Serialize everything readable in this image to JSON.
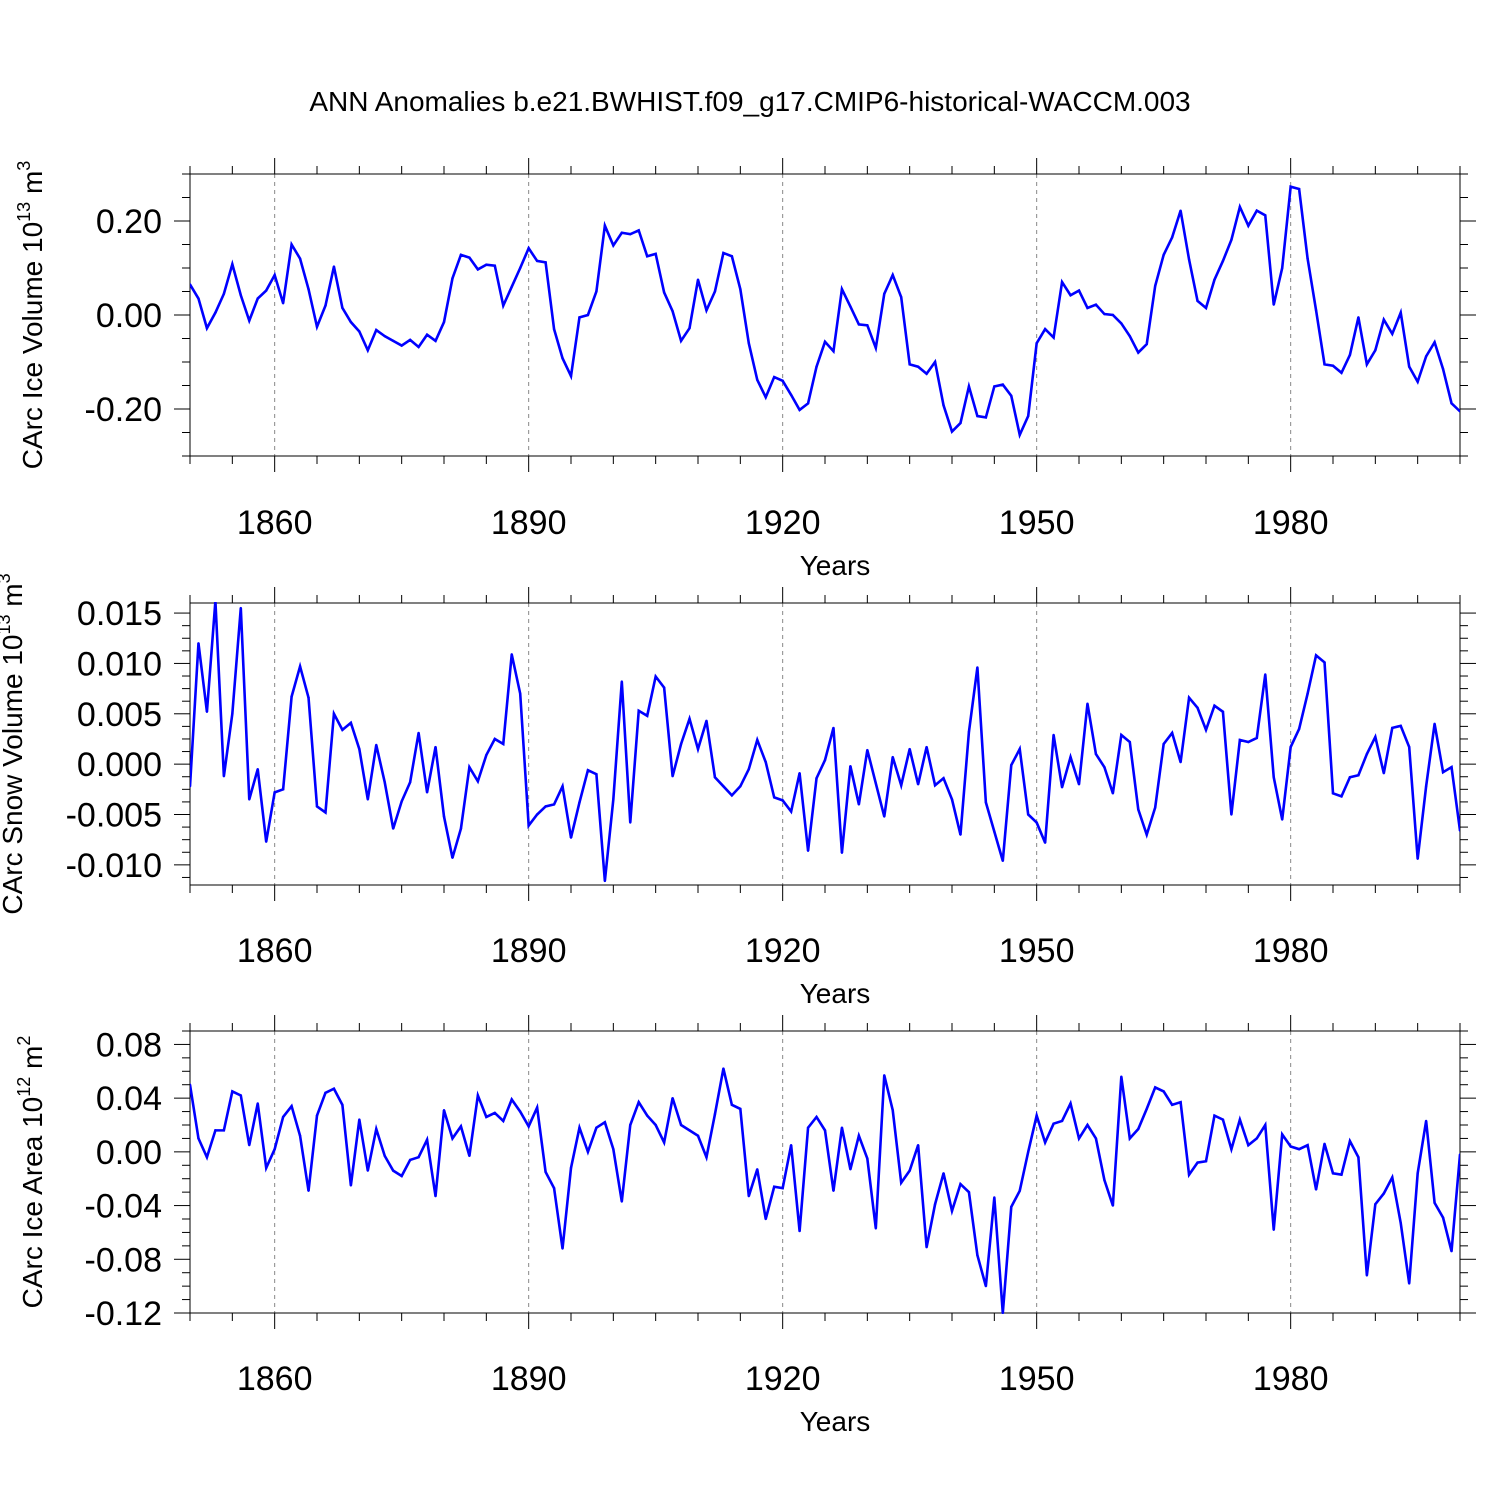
{
  "title": "ANN Anomalies b.e21.BWHIST.f09_g17.CMIP6-historical-WACCM.003",
  "colors": {
    "series": "#0000ff",
    "axis": "#000000",
    "grid": "#888888"
  },
  "chart_data": [
    {
      "type": "line",
      "ylabel": {
        "main": "CArc Ice Volume 10",
        "exp": "13",
        "unit": " m",
        "unit_exp": "3"
      },
      "xlabel": "Years",
      "xlim": [
        1850,
        2000
      ],
      "ylim": [
        -0.3,
        0.3
      ],
      "x_ticks": [
        "1860",
        "1890",
        "1920",
        "1950",
        "1980"
      ],
      "y_ticks": [
        {
          "value": 0.2,
          "label": "0.20"
        },
        {
          "value": 0.0,
          "label": "0.00"
        },
        {
          "value": -0.2,
          "label": "-0.20"
        }
      ],
      "grid": "vertical dashed at major x ticks",
      "series": [
        {
          "x_start": 1850,
          "values": [
            0.065,
            0.035,
            -0.028,
            0.005,
            0.045,
            0.108,
            0.042,
            -0.012,
            0.035,
            0.052,
            0.085,
            0.025,
            0.15,
            0.12,
            0.055,
            -0.025,
            0.02,
            0.103,
            0.015,
            -0.015,
            -0.035,
            -0.075,
            -0.032,
            -0.045,
            -0.055,
            -0.065,
            -0.053,
            -0.068,
            -0.042,
            -0.055,
            -0.015,
            0.078,
            0.128,
            0.122,
            0.097,
            0.107,
            0.105,
            0.02,
            0.06,
            0.1,
            0.142,
            0.115,
            0.112,
            -0.03,
            -0.092,
            -0.13,
            -0.005,
            0.0,
            0.05,
            0.19,
            0.148,
            0.175,
            0.172,
            0.18,
            0.125,
            0.13,
            0.048,
            0.008,
            -0.055,
            -0.028,
            0.075,
            0.01,
            0.05,
            0.132,
            0.125,
            0.055,
            -0.06,
            -0.138,
            -0.175,
            -0.132,
            -0.14,
            -0.17,
            -0.202,
            -0.188,
            -0.11,
            -0.057,
            -0.077,
            0.055,
            0.018,
            -0.02,
            -0.022,
            -0.07,
            0.045,
            0.085,
            0.038,
            -0.105,
            -0.11,
            -0.125,
            -0.1,
            -0.192,
            -0.248,
            -0.23,
            -0.152,
            -0.215,
            -0.218,
            -0.152,
            -0.148,
            -0.172,
            -0.255,
            -0.215,
            -0.06,
            -0.03,
            -0.048,
            0.07,
            0.042,
            0.052,
            0.015,
            0.022,
            0.002,
            0.0,
            -0.018,
            -0.045,
            -0.08,
            -0.062,
            0.062,
            0.128,
            0.165,
            0.222,
            0.118,
            0.03,
            0.015,
            0.075,
            0.115,
            0.16,
            0.23,
            0.19,
            0.222,
            0.212,
            0.022,
            0.1,
            0.273,
            0.268,
            0.12,
            0.01,
            -0.105,
            -0.108,
            -0.123,
            -0.085,
            -0.005,
            -0.105,
            -0.075,
            -0.01,
            -0.04,
            0.005,
            -0.11,
            -0.142,
            -0.088,
            -0.058,
            -0.115,
            -0.188,
            -0.205
          ]
        }
      ]
    },
    {
      "type": "line",
      "ylabel": {
        "main": "CArc Snow Volume 10",
        "exp": "13",
        "unit": " m",
        "unit_exp": "3"
      },
      "xlabel": "Years",
      "xlim": [
        1850,
        2000
      ],
      "ylim": [
        -0.012,
        0.016
      ],
      "x_ticks": [
        "1860",
        "1890",
        "1920",
        "1950",
        "1980"
      ],
      "y_ticks": [
        {
          "value": 0.015,
          "label": "0.015"
        },
        {
          "value": 0.01,
          "label": "0.010"
        },
        {
          "value": 0.005,
          "label": "0.005"
        },
        {
          "value": 0.0,
          "label": "0.000"
        },
        {
          "value": -0.005,
          "label": "-0.005"
        },
        {
          "value": -0.01,
          "label": "-0.010"
        }
      ],
      "grid": "vertical dashed at major x ticks",
      "series": [
        {
          "x_start": 1850,
          "values": [
            -0.0022,
            0.012,
            0.0052,
            0.0162,
            -0.0012,
            0.005,
            0.0155,
            -0.0035,
            -0.0005,
            -0.0077,
            -0.0028,
            -0.0025,
            0.0067,
            0.0097,
            0.0066,
            -0.0042,
            -0.0048,
            0.005,
            0.0034,
            0.0041,
            0.0015,
            -0.0035,
            0.0019,
            -0.0018,
            -0.0064,
            -0.0037,
            -0.0018,
            0.0031,
            -0.0028,
            0.0017,
            -0.0052,
            -0.0093,
            -0.0064,
            -0.0003,
            -0.0017,
            0.0009,
            0.0025,
            0.002,
            0.0109,
            0.007,
            -0.0061,
            -0.005,
            -0.0042,
            -0.004,
            -0.0022,
            -0.0073,
            -0.0038,
            -0.0006,
            -0.001,
            -0.0116,
            -0.0035,
            0.0082,
            -0.0058,
            0.0053,
            0.0048,
            0.0087,
            0.0076,
            -0.0012,
            0.002,
            0.0045,
            0.0015,
            0.0043,
            -0.0013,
            -0.0022,
            -0.0031,
            -0.0022,
            -0.0005,
            0.0024,
            0.0002,
            -0.0033,
            -0.0036,
            -0.0047,
            -0.0009,
            -0.0086,
            -0.0014,
            0.0004,
            0.0036,
            -0.0088,
            -0.0002,
            -0.004,
            0.0014,
            -0.0019,
            -0.0052,
            0.0007,
            -0.0021,
            0.0015,
            -0.002,
            0.0017,
            -0.0021,
            -0.0014,
            -0.0035,
            -0.007,
            0.0032,
            0.0096,
            -0.0038,
            -0.0067,
            -0.0096,
            -0.0001,
            0.0015,
            -0.005,
            -0.0058,
            -0.0078,
            0.0029,
            -0.0023,
            0.0007,
            -0.002,
            0.006,
            0.001,
            -0.0003,
            -0.0029,
            0.0029,
            0.0022,
            -0.0045,
            -0.007,
            -0.0043,
            0.002,
            0.0031,
            0.0002,
            0.0066,
            0.0056,
            0.0034,
            0.0058,
            0.0052,
            -0.005,
            0.0024,
            0.0022,
            0.0026,
            0.0089,
            -0.0013,
            -0.0055,
            0.0017,
            0.0035,
            0.007,
            0.0108,
            0.0101,
            -0.0029,
            -0.0032,
            -0.0013,
            -0.0011,
            0.001,
            0.0027,
            -0.0009,
            0.0036,
            0.0038,
            0.0017,
            -0.0094,
            -0.0022,
            0.004,
            -0.0008,
            -0.0003,
            -0.0066
          ]
        }
      ]
    },
    {
      "type": "line",
      "ylabel": {
        "main": "CArc Ice Area 10",
        "exp": "12",
        "unit": " m",
        "unit_exp": "2"
      },
      "xlabel": "Years",
      "xlim": [
        1850,
        2000
      ],
      "ylim": [
        -0.12,
        0.09
      ],
      "x_ticks": [
        "1860",
        "1890",
        "1920",
        "1950",
        "1980"
      ],
      "y_ticks": [
        {
          "value": 0.08,
          "label": "0.08"
        },
        {
          "value": 0.04,
          "label": "0.04"
        },
        {
          "value": 0.0,
          "label": "0.00"
        },
        {
          "value": -0.04,
          "label": "-0.04"
        },
        {
          "value": -0.08,
          "label": "-0.08"
        },
        {
          "value": -0.12,
          "label": "-0.12"
        }
      ],
      "grid": "vertical dashed at major x ticks",
      "series": [
        {
          "x_start": 1850,
          "values": [
            0.05,
            0.01,
            -0.004,
            0.016,
            0.016,
            0.045,
            0.042,
            0.005,
            0.036,
            -0.012,
            0.002,
            0.026,
            0.034,
            0.012,
            -0.029,
            0.027,
            0.044,
            0.047,
            0.035,
            -0.025,
            0.024,
            -0.014,
            0.017,
            -0.003,
            -0.014,
            -0.018,
            -0.006,
            -0.004,
            0.009,
            -0.033,
            0.031,
            0.01,
            0.019,
            -0.003,
            0.042,
            0.026,
            0.029,
            0.023,
            0.039,
            0.03,
            0.019,
            0.033,
            -0.015,
            -0.027,
            -0.072,
            -0.012,
            0.018,
            0.0,
            0.018,
            0.022,
            0.002,
            -0.037,
            0.02,
            0.037,
            0.027,
            0.02,
            0.007,
            0.04,
            0.02,
            0.016,
            0.012,
            -0.004,
            0.028,
            0.062,
            0.035,
            0.032,
            -0.033,
            -0.013,
            -0.05,
            -0.026,
            -0.027,
            0.005,
            -0.059,
            0.018,
            0.026,
            0.016,
            -0.029,
            0.018,
            -0.013,
            0.012,
            -0.005,
            -0.057,
            0.057,
            0.031,
            -0.023,
            -0.014,
            0.005,
            -0.071,
            -0.039,
            -0.016,
            -0.044,
            -0.024,
            -0.03,
            -0.077,
            -0.1,
            -0.034,
            -0.12,
            -0.041,
            -0.029,
            0.0,
            0.027,
            0.007,
            0.021,
            0.023,
            0.036,
            0.01,
            0.02,
            0.01,
            -0.021,
            -0.04,
            0.056,
            0.01,
            0.017,
            0.032,
            0.048,
            0.045,
            0.035,
            0.037,
            -0.017,
            -0.008,
            -0.007,
            0.027,
            0.024,
            0.002,
            0.024,
            0.005,
            0.01,
            0.02,
            -0.058,
            0.013,
            0.004,
            0.002,
            0.005,
            -0.028,
            0.006,
            -0.016,
            -0.017,
            0.008,
            -0.004,
            -0.092,
            -0.039,
            -0.031,
            -0.019,
            -0.053,
            -0.098,
            -0.016,
            0.023,
            -0.038,
            -0.049,
            -0.074,
            -0.002
          ]
        }
      ]
    }
  ]
}
